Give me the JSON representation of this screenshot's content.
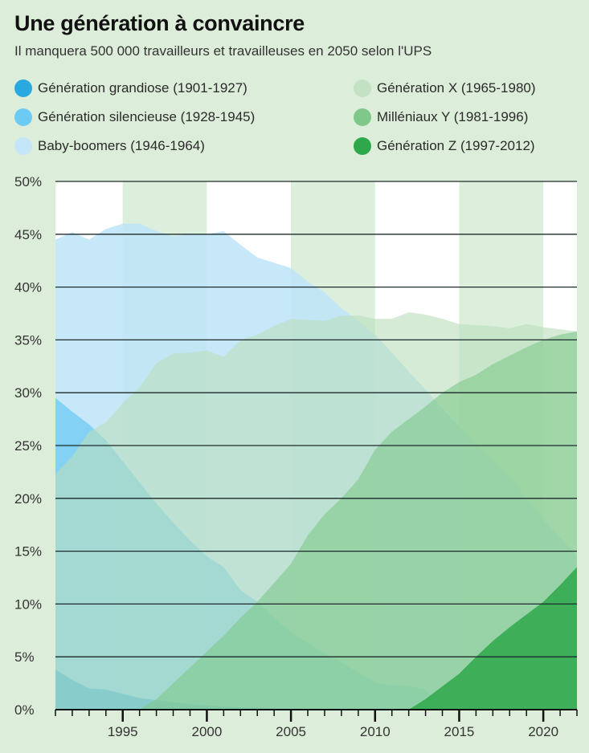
{
  "title": "Une génération à convaincre",
  "subtitle": "Il manquera 500 000 travailleurs et travailleuses en 2050 selon l'UPS",
  "chart_data": {
    "type": "area",
    "stacked": false,
    "x": [
      1991,
      1992,
      1993,
      1994,
      1995,
      1996,
      1997,
      1998,
      1999,
      2000,
      2001,
      2002,
      2003,
      2004,
      2005,
      2006,
      2007,
      2008,
      2009,
      2010,
      2011,
      2012,
      2013,
      2014,
      2015,
      2016,
      2017,
      2018,
      2019,
      2020,
      2021,
      2022
    ],
    "xlim": [
      1991,
      2022
    ],
    "xticks": [
      1995,
      2000,
      2005,
      2010,
      2015,
      2020
    ],
    "xtick_labels": [
      "1995",
      "2000",
      "2005",
      "2010",
      "2015",
      "2020"
    ],
    "ylim": [
      0,
      50
    ],
    "yticks": [
      0,
      5,
      10,
      15,
      20,
      25,
      30,
      35,
      40,
      45,
      50
    ],
    "ytick_labels": [
      "0%",
      "5%",
      "10%",
      "15%",
      "20%",
      "25%",
      "30%",
      "35%",
      "40%",
      "45%",
      "50%"
    ],
    "grid": "horizontal",
    "legend_placement": "top",
    "series": [
      {
        "name": "Baby-boomers (1946-1964)",
        "color": "#bde4f8",
        "values": [
          44.5,
          45.2,
          44.5,
          45.5,
          46,
          46,
          45.3,
          44.8,
          45,
          45,
          45.3,
          44,
          42.8,
          42.3,
          41.8,
          40.5,
          39.5,
          38,
          36.8,
          35.5,
          33.8,
          32,
          30.3,
          28.5,
          26.8,
          25,
          23.5,
          22,
          20,
          18,
          16.3,
          14.5
        ]
      },
      {
        "name": "Génération silencieuse (1928-1945)",
        "color": "#6ccbf3",
        "values": [
          29.5,
          28.2,
          27,
          25.5,
          23.5,
          21.5,
          19.5,
          17.7,
          16,
          14.5,
          13.5,
          11.3,
          10.2,
          8.7,
          7.3,
          6.3,
          5.3,
          4.5,
          3.5,
          2.6,
          2.3,
          2.2,
          1.9,
          0,
          0,
          0,
          0,
          0,
          0,
          0,
          0,
          0
        ]
      },
      {
        "name": "Génération grandiose (1901-1927)",
        "color": "#2aa9e0",
        "values": [
          3.8,
          2.8,
          2,
          1.9,
          1.5,
          1.1,
          0.9,
          0.7,
          0.5,
          0.4,
          0.3,
          0.2,
          0.2,
          0.1,
          0,
          0,
          0,
          0,
          0,
          0,
          0,
          0,
          0,
          0,
          0,
          0,
          0,
          0,
          0,
          0,
          0,
          0
        ]
      },
      {
        "name": "Génération X (1965-1980)",
        "color": "#b9deba",
        "values": [
          22.3,
          24,
          26.3,
          27.2,
          29,
          30.5,
          32.8,
          33.7,
          33.8,
          34,
          33.4,
          35,
          35.5,
          36.3,
          37,
          36.9,
          36.8,
          37.3,
          37.3,
          37,
          37,
          37.6,
          37.4,
          37,
          36.5,
          36.4,
          36.3,
          36.1,
          36.5,
          36.2,
          36,
          35.8
        ]
      },
      {
        "name": "Milléniaux Y (1981-1996)",
        "color": "#7fc88a",
        "values": [
          0,
          0,
          0,
          0,
          0,
          0,
          1,
          2.5,
          4,
          5.5,
          7,
          8.7,
          10.2,
          12,
          13.8,
          16.5,
          18.5,
          20,
          21.8,
          24.6,
          26.3,
          27.5,
          28.7,
          30,
          31,
          31.7,
          32.7,
          33.5,
          34.3,
          35,
          35.5,
          35.8
        ]
      },
      {
        "name": "Génération Z (1997-2012)",
        "color": "#2ea84a",
        "values": [
          0,
          0,
          0,
          0,
          0,
          0,
          0,
          0,
          0,
          0,
          0,
          0,
          0,
          0,
          0,
          0,
          0,
          0,
          0,
          0,
          0,
          0,
          1,
          2.2,
          3.4,
          5,
          6.5,
          7.8,
          9,
          10.2,
          11.8,
          13.5
        ]
      }
    ],
    "legend": [
      {
        "label": "Génération grandiose (1901-1927)",
        "color": "#2aa9e0"
      },
      {
        "label": "Génération silencieuse (1928-1945)",
        "color": "#6ccbf3"
      },
      {
        "label": "Baby-boomers (1946-1964)",
        "color": "#bde4f8"
      },
      {
        "label": "Génération X (1965-1980)",
        "color": "#b9deba"
      },
      {
        "label": "Milléniaux Y (1981-1996)",
        "color": "#7fc88a"
      },
      {
        "label": "Génération Z (1997-2012)",
        "color": "#2ea84a"
      }
    ],
    "band_colors": [
      "#ffffff",
      "#dcefdc"
    ]
  }
}
